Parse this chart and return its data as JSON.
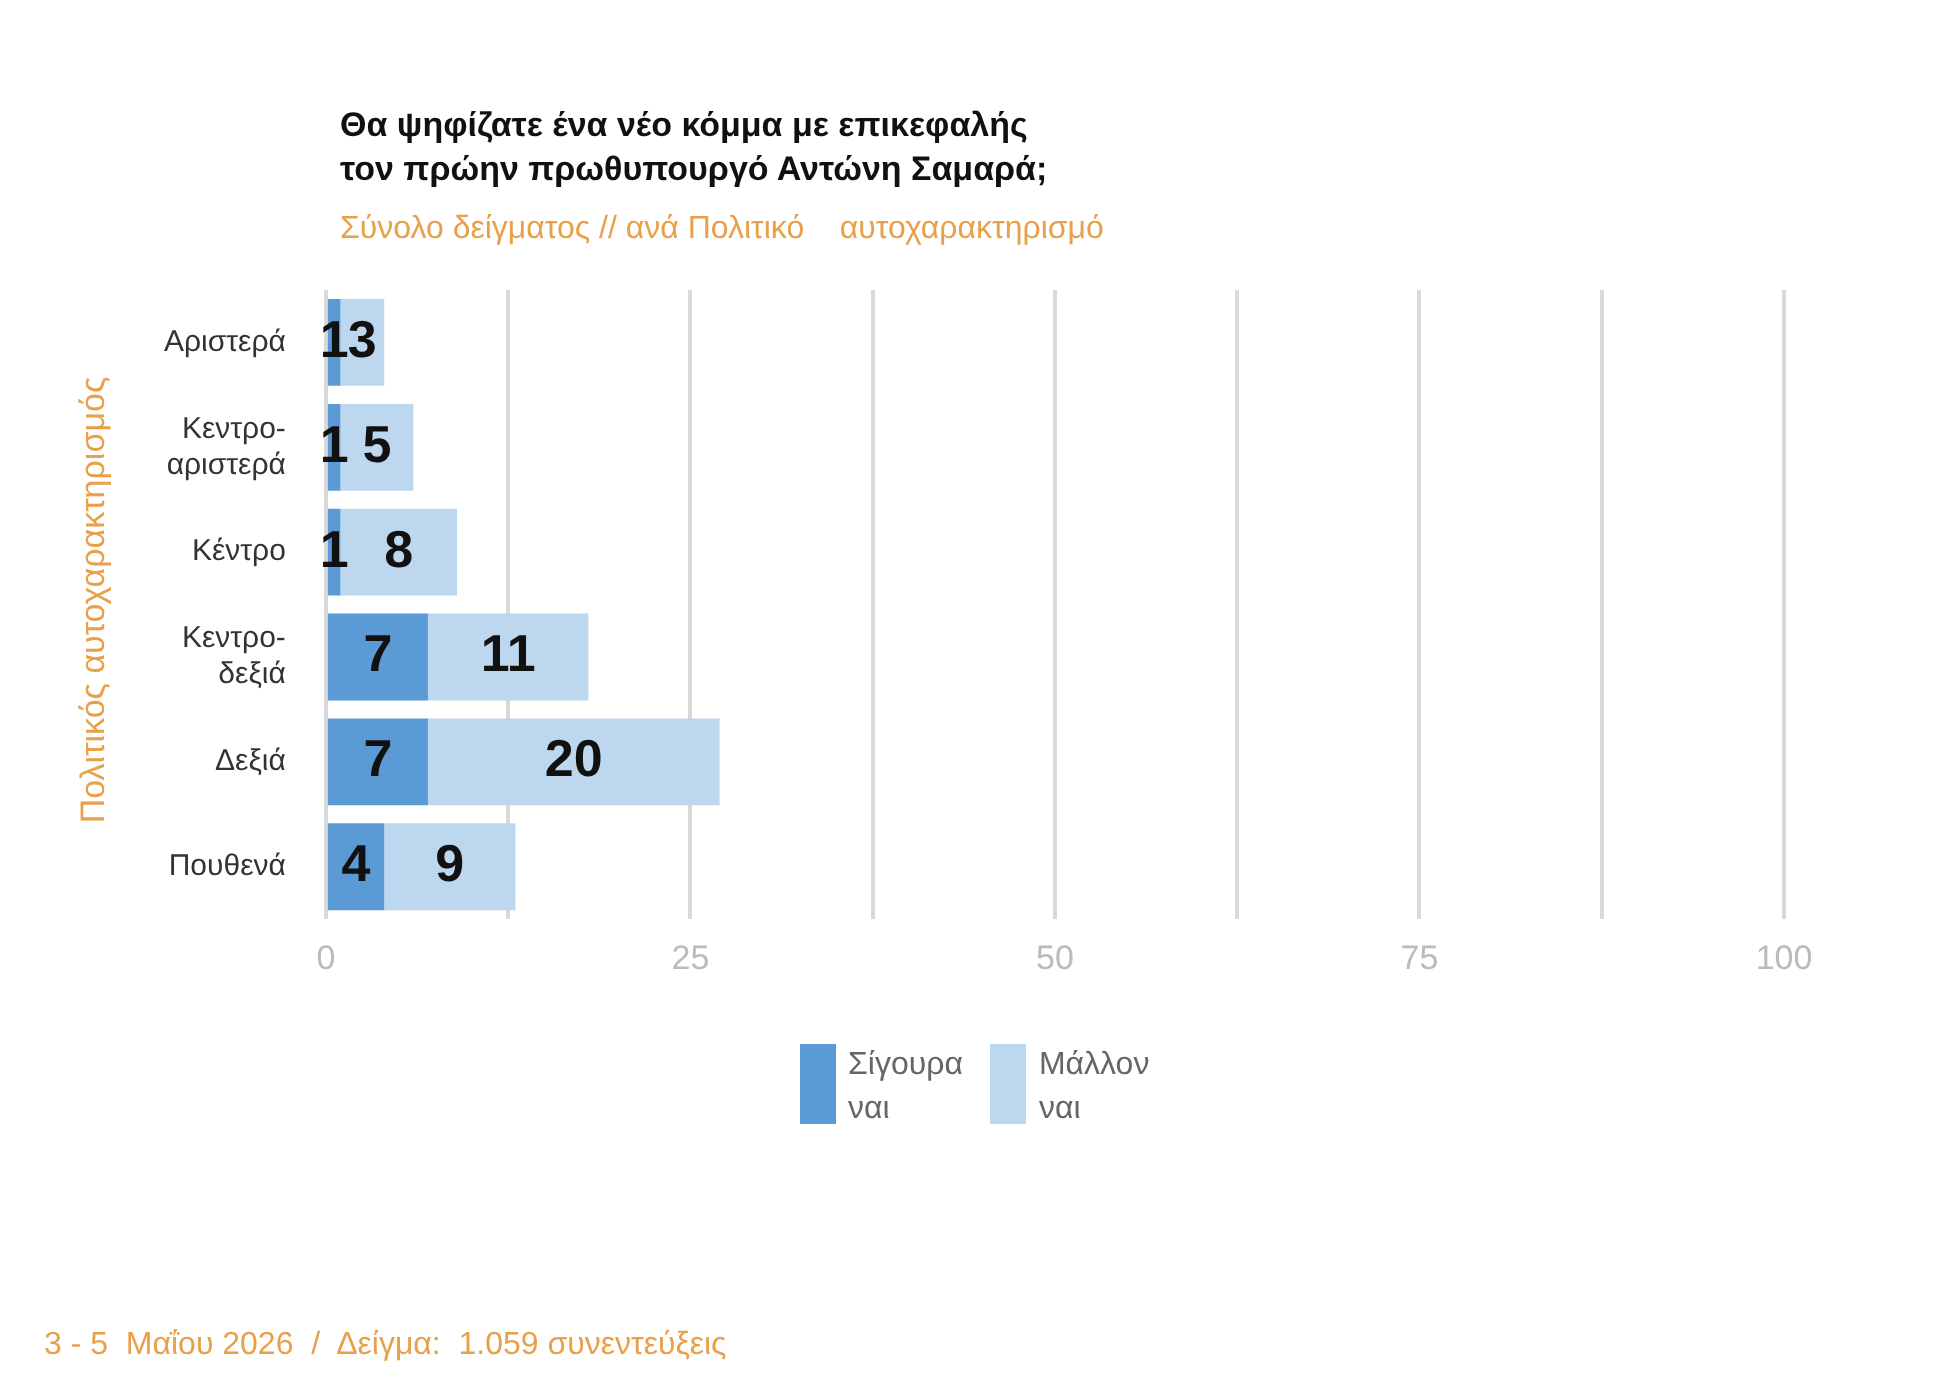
{
  "chart_data": {
    "type": "bar",
    "orientation": "horizontal",
    "stacked": true,
    "title": "Θα ψηφίζατε ένα νέο κόμμα με επικεφαλής\nτον πρώην πρωθυπουργό Αντώνη Σαμαρά;",
    "subtitle": "Σύνολο δείγματος // ανά Πολιτικό    αυτοχαρακτηρισμό",
    "ylabel": "Πολιτικός  αυτοχαρακτηρισμός",
    "categories": [
      "Αριστερά",
      "Κεντρο-\nαριστερά",
      "Κέντρο",
      "Κεντρο-\nδεξιά",
      "Δεξιά",
      "Πουθενά"
    ],
    "series": [
      {
        "name": "Σίγουρα\nναι",
        "color": "#5b9bd5",
        "values": [
          1,
          1,
          1,
          7,
          7,
          4
        ]
      },
      {
        "name": "Μάλλον\nναι",
        "color": "#bdd7ee",
        "values": [
          3,
          5,
          8,
          11,
          20,
          9
        ]
      }
    ],
    "xlim": [
      0,
      100
    ],
    "xticks": [
      0,
      {
        "value": 12.5,
        "label": null
      },
      25,
      {
        "value": 37.5,
        "label": null
      },
      50,
      {
        "value": 62.5,
        "label": null
      },
      75,
      {
        "value": 87.5,
        "label": null
      },
      100
    ],
    "grid": "x",
    "legend": "bottom",
    "data_labels": true,
    "annotations": [
      "3 - 5  Μαΐου 2026  /  Δείγμα:  1.059 συνεντεύξεις"
    ]
  }
}
